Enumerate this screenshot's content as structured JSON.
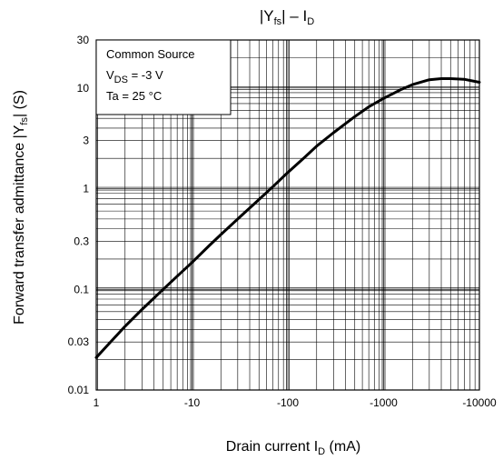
{
  "chart_data": {
    "type": "line",
    "title": {
      "main": "|Y",
      "sub": "fs",
      "mid": "| – I",
      "sub2": "D"
    },
    "xlabel": {
      "main": "Drain current   I",
      "sub": "D",
      "unit": "   (mA)"
    },
    "ylabel": {
      "main": "Forward transfer admittance   |Y",
      "sub": "fs",
      "unit": "|    (S)"
    },
    "xscale": "log",
    "yscale": "log",
    "xlim": [
      1,
      10000
    ],
    "ylim": [
      0.01,
      30
    ],
    "grid": true,
    "xticks": [
      {
        "value": 1,
        "label": "1"
      },
      {
        "value": 10,
        "label": "-10"
      },
      {
        "value": 100,
        "label": "-100"
      },
      {
        "value": 1000,
        "label": "-1000"
      },
      {
        "value": 10000,
        "label": "-10000"
      }
    ],
    "yticks": [
      {
        "value": 0.01,
        "label": "0.01"
      },
      {
        "value": 0.03,
        "label": "0.03"
      },
      {
        "value": 0.1,
        "label": "0.1"
      },
      {
        "value": 0.3,
        "label": "0.3"
      },
      {
        "value": 1,
        "label": "1"
      },
      {
        "value": 3,
        "label": "3"
      },
      {
        "value": 10,
        "label": "10"
      },
      {
        "value": 30,
        "label": "30"
      }
    ],
    "conditions": {
      "line1": "Common Source",
      "line2": {
        "main": "V",
        "sub": "DS",
        "rest": " = -3 V"
      },
      "line3": "Ta = 25 °C"
    },
    "series": [
      {
        "x": [
          1,
          1.5,
          2,
          3,
          5,
          7,
          10,
          15,
          20,
          30,
          50,
          70,
          100,
          150,
          200,
          300,
          500,
          700,
          1000,
          1500,
          2000,
          3000,
          4000,
          5000,
          7000,
          10000
        ],
        "y": [
          0.021,
          0.032,
          0.043,
          0.063,
          0.1,
          0.135,
          0.185,
          0.27,
          0.35,
          0.5,
          0.78,
          1.05,
          1.45,
          2.05,
          2.65,
          3.6,
          5.2,
          6.5,
          7.9,
          9.6,
          10.8,
          12.1,
          12.4,
          12.4,
          12.2,
          11.4
        ]
      }
    ],
    "colors": {
      "line": "#000000",
      "grid": "#000000",
      "background": "#ffffff"
    }
  }
}
